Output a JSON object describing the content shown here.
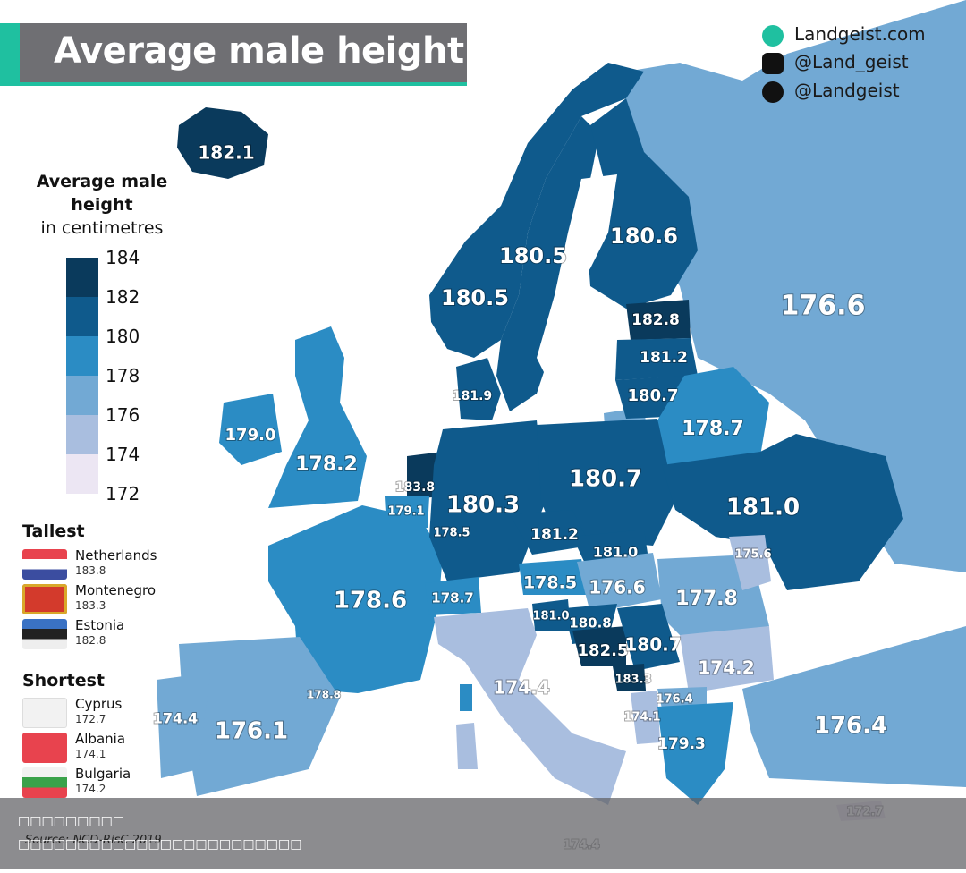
{
  "title": "Average male height",
  "social": [
    {
      "icon": "globe-icon",
      "text": "Landgeist.com"
    },
    {
      "icon": "instagram-icon",
      "text": "@Land_geist"
    },
    {
      "icon": "twitter-icon",
      "text": "@Landgeist"
    }
  ],
  "legend": {
    "title": "Average male height",
    "subtitle": "in centimetres",
    "ticks": [
      "184",
      "182",
      "180",
      "178",
      "176",
      "174",
      "172"
    ],
    "colors": [
      "#0a3a5c",
      "#0f5a8c",
      "#2b8cc4",
      "#72a9d4",
      "#a9bedf",
      "#ece6f3"
    ]
  },
  "tallest": {
    "heading": "Tallest",
    "items": [
      {
        "name": "Netherlands",
        "value": "183.8"
      },
      {
        "name": "Montenegro",
        "value": "183.3"
      },
      {
        "name": "Estonia",
        "value": "182.8"
      }
    ]
  },
  "shortest": {
    "heading": "Shortest",
    "items": [
      {
        "name": "Cyprus",
        "value": "172.7"
      },
      {
        "name": "Albania",
        "value": "174.1"
      },
      {
        "name": "Bulgaria",
        "value": "174.2"
      }
    ]
  },
  "map_labels": [
    {
      "name": "iceland",
      "value": "182.1"
    },
    {
      "name": "norway-north",
      "value": "180.5"
    },
    {
      "name": "norway",
      "value": "180.5"
    },
    {
      "name": "finland",
      "value": "180.6"
    },
    {
      "name": "russia",
      "value": "176.6"
    },
    {
      "name": "estonia",
      "value": "182.8"
    },
    {
      "name": "latvia",
      "value": "181.2"
    },
    {
      "name": "lithuania",
      "value": "180.7"
    },
    {
      "name": "belarus",
      "value": "178.7"
    },
    {
      "name": "denmark",
      "value": "181.9"
    },
    {
      "name": "ireland",
      "value": "179.0"
    },
    {
      "name": "uk",
      "value": "178.2"
    },
    {
      "name": "netherlands",
      "value": "183.8"
    },
    {
      "name": "belgium",
      "value": "179.1"
    },
    {
      "name": "luxembourg",
      "value": "178.5"
    },
    {
      "name": "germany",
      "value": "180.3"
    },
    {
      "name": "poland",
      "value": "180.7"
    },
    {
      "name": "ukraine",
      "value": "181.0"
    },
    {
      "name": "czechia",
      "value": "181.2"
    },
    {
      "name": "slovakia",
      "value": "181.0"
    },
    {
      "name": "moldova",
      "value": "175.6"
    },
    {
      "name": "france",
      "value": "178.6"
    },
    {
      "name": "switzerland",
      "value": "178.7"
    },
    {
      "name": "austria",
      "value": "178.5"
    },
    {
      "name": "hungary",
      "value": "176.6"
    },
    {
      "name": "romania",
      "value": "177.8"
    },
    {
      "name": "slovenia",
      "value": "181.0"
    },
    {
      "name": "croatia",
      "value": "180.8"
    },
    {
      "name": "bosnia",
      "value": "182.5"
    },
    {
      "name": "serbia",
      "value": "180.7"
    },
    {
      "name": "montenegro",
      "value": "183.3"
    },
    {
      "name": "bulgaria",
      "value": "174.2"
    },
    {
      "name": "north-macedonia",
      "value": "176.4"
    },
    {
      "name": "albania",
      "value": "174.1"
    },
    {
      "name": "greece",
      "value": "179.3"
    },
    {
      "name": "turkey",
      "value": "176.4"
    },
    {
      "name": "italy",
      "value": "174.4"
    },
    {
      "name": "monaco",
      "value": "178.8"
    },
    {
      "name": "portugal",
      "value": "174.4"
    },
    {
      "name": "spain",
      "value": "176.1"
    },
    {
      "name": "cyprus",
      "value": "172.7"
    },
    {
      "name": "malta",
      "value": "174.4"
    }
  ],
  "footer": {
    "line1": "□□□□□□□□□",
    "source": "Source: NCD-RisC 2019",
    "line2": "□□□□□□□□□□□□□□□□□□□□□□□□"
  }
}
